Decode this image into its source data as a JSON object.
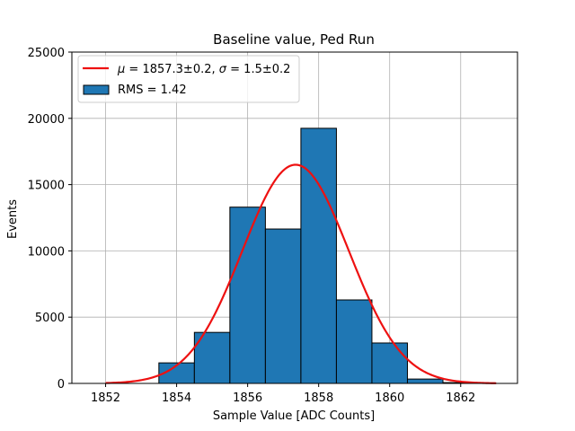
{
  "chart_data": {
    "type": "bar",
    "title": "Baseline value, Ped Run",
    "xlabel": "Sample Value [ADC Counts]",
    "ylabel": "Events",
    "xlim": [
      1851.05,
      1863.6
    ],
    "ylim": [
      0,
      25000
    ],
    "xticks": [
      1852,
      1854,
      1856,
      1858,
      1860,
      1862
    ],
    "xtick_labels": [
      "1852",
      "1854",
      "1856",
      "1858",
      "1860",
      "1862"
    ],
    "yticks": [
      0,
      5000,
      10000,
      15000,
      20000,
      25000
    ],
    "ytick_labels": [
      "0",
      "5000",
      "10000",
      "15000",
      "20000",
      "25000"
    ],
    "grid": true,
    "legend_position": "upper-left",
    "histogram": {
      "label": "RMS = 1.42",
      "color": "#1f77b4",
      "edge_color": "#000000",
      "bins": [
        {
          "x0": 1851.5,
          "x1": 1852.5,
          "count": 0
        },
        {
          "x0": 1852.5,
          "x1": 1853.5,
          "count": 0
        },
        {
          "x0": 1853.5,
          "x1": 1854.5,
          "count": 1550
        },
        {
          "x0": 1854.5,
          "x1": 1855.5,
          "count": 3850
        },
        {
          "x0": 1855.5,
          "x1": 1856.5,
          "count": 13300
        },
        {
          "x0": 1856.5,
          "x1": 1857.5,
          "count": 11650
        },
        {
          "x0": 1857.5,
          "x1": 1858.5,
          "count": 19250
        },
        {
          "x0": 1858.5,
          "x1": 1859.5,
          "count": 6300
        },
        {
          "x0": 1859.5,
          "x1": 1860.5,
          "count": 3050
        },
        {
          "x0": 1860.5,
          "x1": 1861.5,
          "count": 330
        },
        {
          "x0": 1861.5,
          "x1": 1862.5,
          "count": 60
        }
      ]
    },
    "fit": {
      "label_mu_symbol": "μ",
      "label_mu_value": " = 1857.3±0.2, ",
      "label_sigma_symbol": "σ",
      "label_sigma_value": " = 1.5±0.2",
      "color": "#ee1111",
      "mu": 1857.35,
      "sigma": 1.5,
      "amplitude": 16500,
      "x_range": [
        1852.0,
        1863.0
      ]
    }
  }
}
